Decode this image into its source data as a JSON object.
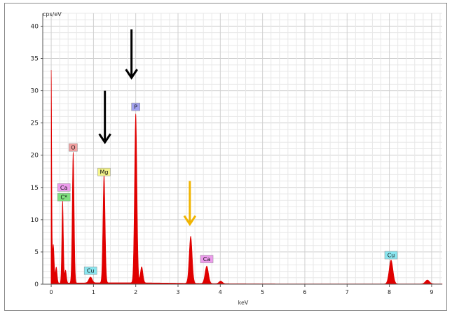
{
  "chart_data": {
    "type": "area",
    "ylabel": "cps/eV",
    "xlabel": "keV",
    "xlim": [
      -0.2,
      9.25
    ],
    "ylim": [
      0,
      42
    ],
    "x_ticks": [
      "0",
      "1",
      "2",
      "3",
      "4",
      "5",
      "6",
      "7",
      "8",
      "9"
    ],
    "y_ticks": [
      "0",
      "5",
      "10",
      "15",
      "20",
      "25",
      "30",
      "35",
      "40"
    ],
    "grid": true,
    "series_color": "#e00000",
    "peaks": [
      {
        "x": 0.0,
        "y": 32.8,
        "w": 0.012
      },
      {
        "x": 0.05,
        "y": 6.0,
        "w": 0.02
      },
      {
        "x": 0.12,
        "y": 2.5,
        "w": 0.02
      },
      {
        "x": 0.27,
        "y": 12.8,
        "w": 0.018
      },
      {
        "x": 0.34,
        "y": 2.0,
        "w": 0.02
      },
      {
        "x": 0.52,
        "y": 20.3,
        "w": 0.022
      },
      {
        "x": 0.93,
        "y": 0.9,
        "w": 0.04
      },
      {
        "x": 1.25,
        "y": 16.8,
        "w": 0.025
      },
      {
        "x": 2.0,
        "y": 26.2,
        "w": 0.028
      },
      {
        "x": 2.14,
        "y": 2.5,
        "w": 0.03
      },
      {
        "x": 3.3,
        "y": 7.3,
        "w": 0.035
      },
      {
        "x": 3.68,
        "y": 2.7,
        "w": 0.04
      },
      {
        "x": 4.01,
        "y": 0.4,
        "w": 0.04
      },
      {
        "x": 8.04,
        "y": 3.7,
        "w": 0.045
      },
      {
        "x": 8.9,
        "y": 0.6,
        "w": 0.05
      }
    ],
    "annotations": [
      {
        "text": "O",
        "x": 0.52,
        "y": 21.2,
        "color": "#f2a0a0"
      },
      {
        "text": "Ca",
        "x": 0.3,
        "y": 15.0,
        "color": "#ec9cec"
      },
      {
        "text": "C*",
        "x": 0.3,
        "y": 13.5,
        "color": "#7fe07f"
      },
      {
        "text": "Mg",
        "x": 1.25,
        "y": 17.4,
        "color": "#f4f48a"
      },
      {
        "text": "Cu",
        "x": 0.93,
        "y": 2.1,
        "color": "#8ae6f0"
      },
      {
        "text": "P",
        "x": 2.0,
        "y": 27.5,
        "color": "#a3a3f0"
      },
      {
        "text": "Ca",
        "x": 3.68,
        "y": 3.9,
        "color": "#ec9cec"
      },
      {
        "text": "Cu",
        "x": 8.04,
        "y": 4.5,
        "color": "#8ae6f0"
      }
    ],
    "arrows": [
      {
        "x": 1.27,
        "y_from": 30.0,
        "y_to": 22.0,
        "color": "#000000"
      },
      {
        "x": 1.9,
        "y_from": 39.5,
        "y_to": 32.0,
        "color": "#000000"
      },
      {
        "x": 3.28,
        "y_from": 16.0,
        "y_to": 9.3,
        "color": "#f0b400"
      }
    ]
  }
}
